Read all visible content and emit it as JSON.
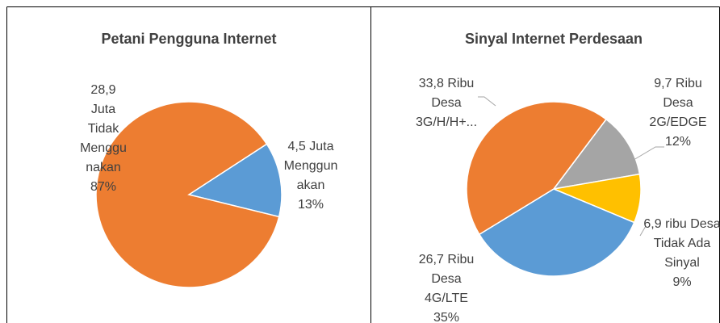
{
  "chart_data": [
    {
      "type": "pie",
      "title": "Petani Pengguna Internet",
      "categories": [
        "Menggunakan",
        "Tidak Menggunakan"
      ],
      "amounts": [
        "4,5 Juta",
        "28,9 Juta"
      ],
      "values": [
        13,
        87
      ],
      "value_labels": [
        "13%",
        "87%"
      ],
      "colors": [
        "#5B9BD5",
        "#ED7D31"
      ],
      "start_angle": 57
    },
    {
      "type": "pie",
      "title": "Sinyal Internet Perdesaan",
      "categories": [
        "Desa 2G/EDGE",
        "Desa Tidak Ada Sinyal",
        "Desa 4G/LTE",
        "Desa 3G/H/H+..."
      ],
      "amounts": [
        "9,7 Ribu",
        "6,9 ribu",
        "26,7 Ribu",
        "33,8 Ribu"
      ],
      "values": [
        12,
        9,
        35,
        44
      ],
      "value_labels": [
        "12%",
        "9%",
        "35%",
        null
      ],
      "colors": [
        "#A5A5A5",
        "#FFC000",
        "#5B9BD5",
        "#ED7D31"
      ],
      "start_angle": 37
    }
  ]
}
